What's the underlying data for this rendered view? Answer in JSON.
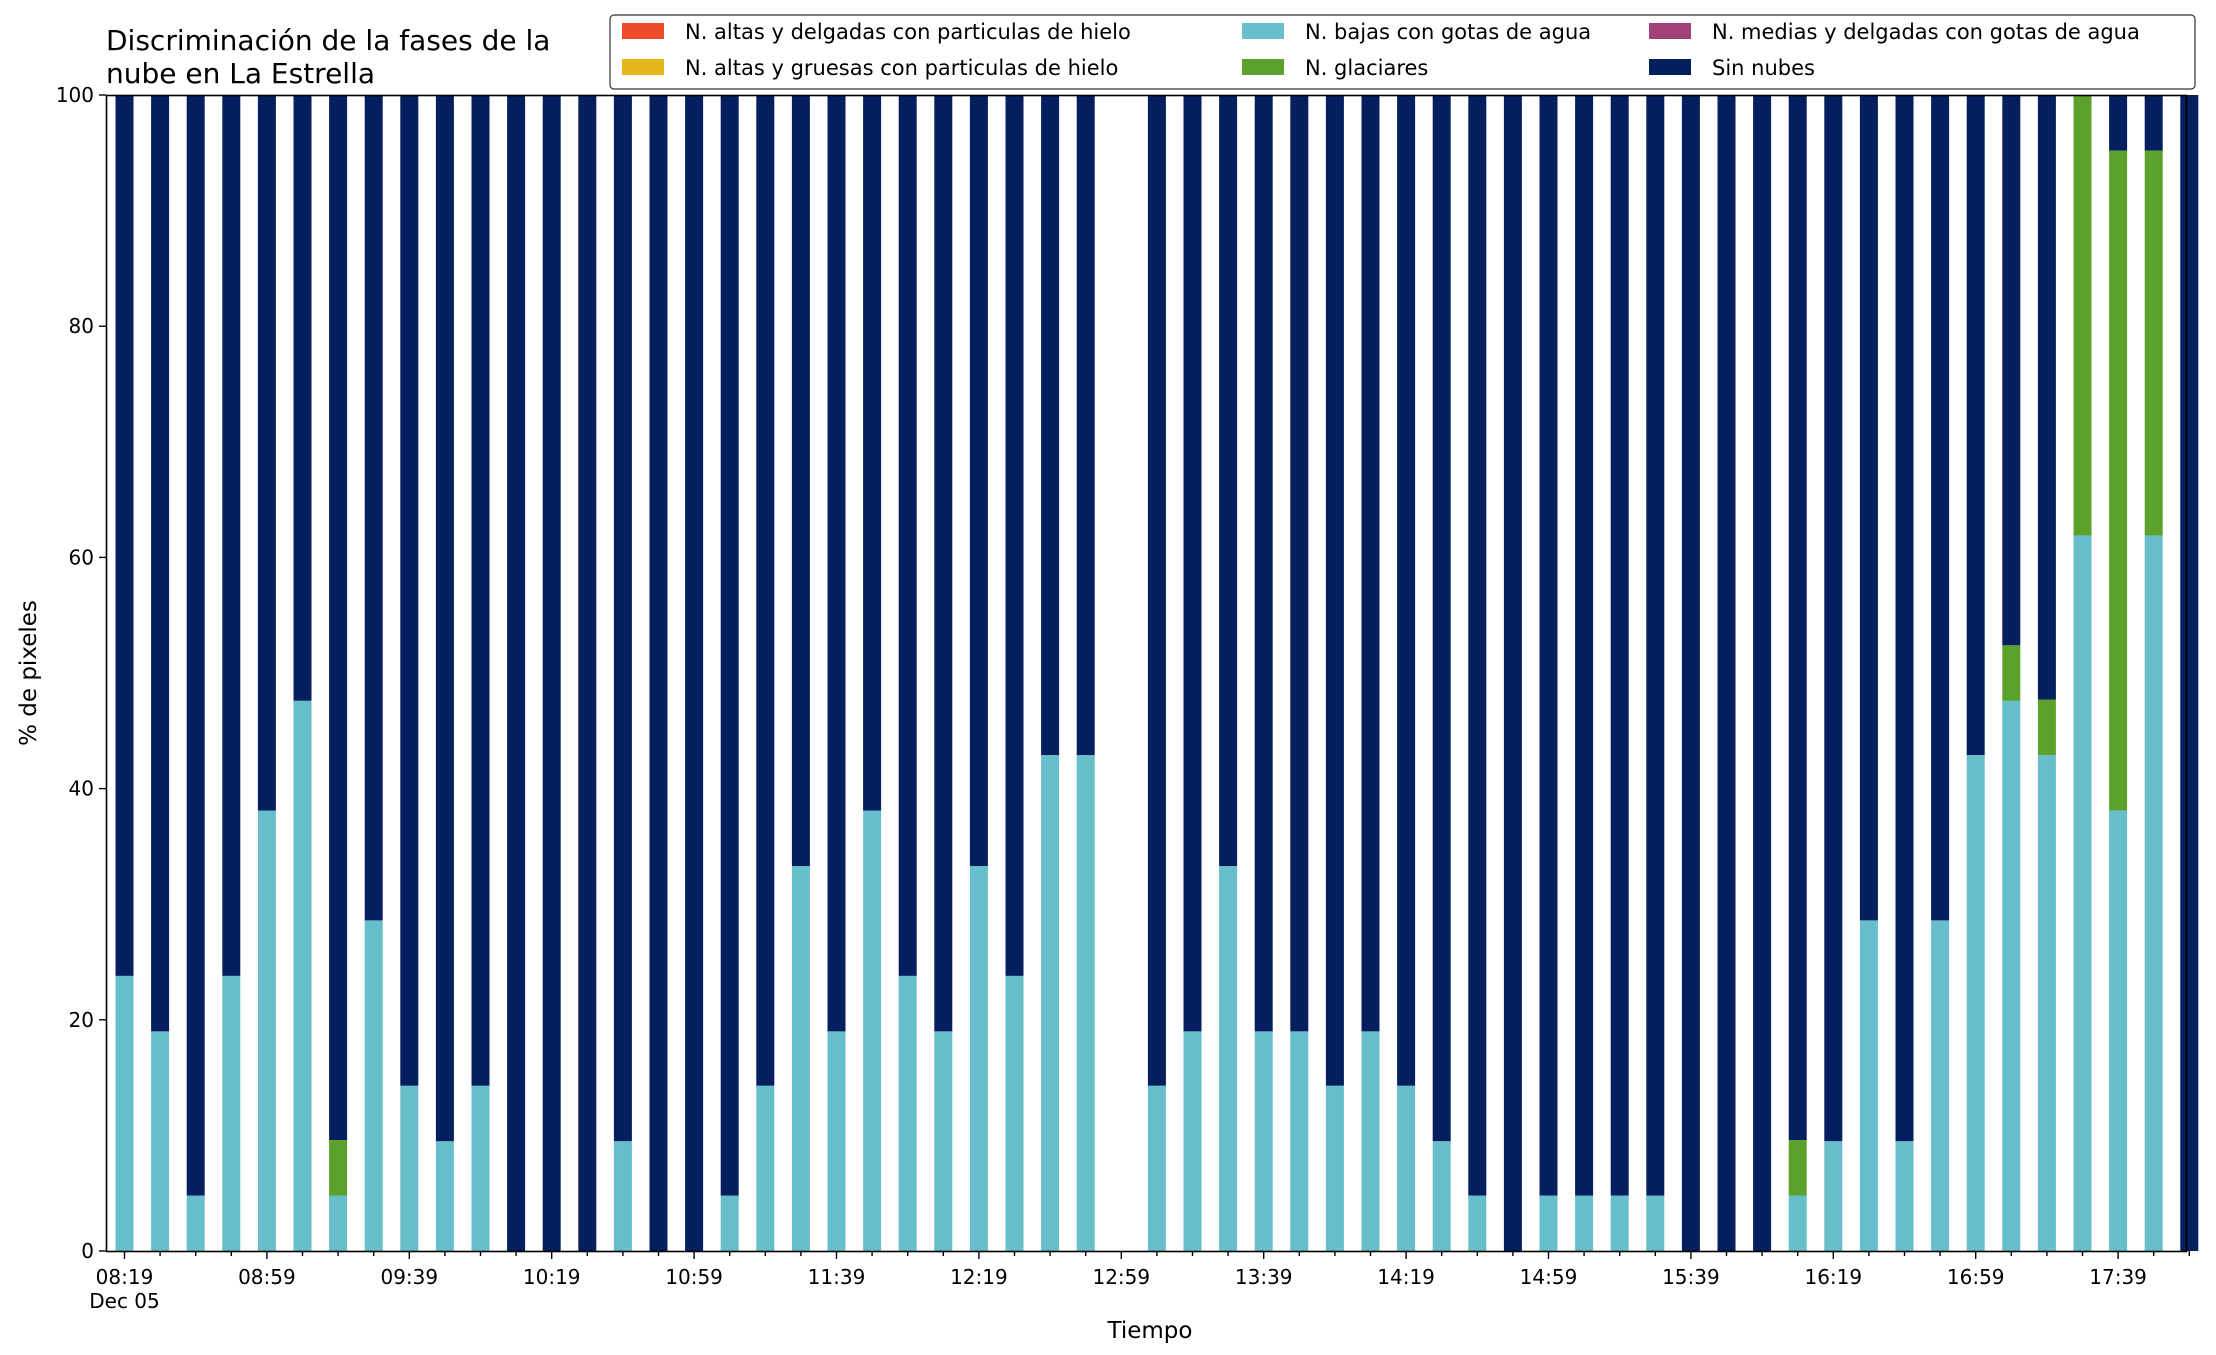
{
  "chart_data": {
    "type": "bar",
    "stacked": true,
    "title": [
      "Discriminación de la fases de la",
      "nube en La Estrella"
    ],
    "xlabel": "Tiempo",
    "ylabel": "% de pixeles",
    "ylim": [
      0,
      100
    ],
    "yticks": [
      0,
      20,
      40,
      60,
      80,
      100
    ],
    "x_start": "08:19",
    "x_step_minutes": 10,
    "x_tick_labels": [
      "08:19",
      "08:59",
      "09:39",
      "10:19",
      "10:59",
      "11:39",
      "12:19",
      "12:59",
      "13:39",
      "14:19",
      "14:59",
      "15:39",
      "16:19",
      "16:59",
      "17:39"
    ],
    "x_tick_sublabel": "Dec 05",
    "legend_position": "top-right",
    "grid": false,
    "series": [
      {
        "name": "N. altas y delgadas con particulas de hielo",
        "color": "#ee4a2c",
        "values": [
          0,
          0,
          0,
          0,
          0,
          0,
          0,
          0,
          0,
          0,
          0,
          0,
          0,
          0,
          0,
          0,
          0,
          0,
          0,
          0,
          0,
          0,
          0,
          0,
          0,
          0,
          0,
          0,
          null,
          0,
          0,
          0,
          0,
          0,
          0,
          0,
          0,
          0,
          0,
          0,
          0,
          0,
          0,
          0,
          0,
          0,
          0,
          0,
          0,
          0,
          0,
          0,
          0,
          0,
          0,
          0,
          0,
          0,
          0
        ]
      },
      {
        "name": "N. altas y gruesas con particulas de hielo",
        "color": "#e5b61a",
        "values": [
          0,
          0,
          0,
          0,
          0,
          0,
          0,
          0,
          0,
          0,
          0,
          0,
          0,
          0,
          0,
          0,
          0,
          0,
          0,
          0,
          0,
          0,
          0,
          0,
          0,
          0,
          0,
          0,
          null,
          0,
          0,
          0,
          0,
          0,
          0,
          0,
          0,
          0,
          0,
          0,
          0,
          0,
          0,
          0,
          0,
          0,
          0,
          0,
          0,
          0,
          0,
          0,
          0,
          0,
          0,
          0,
          0,
          0,
          0
        ]
      },
      {
        "name": "N. bajas con gotas de agua",
        "color": "#67bfcb",
        "values": [
          23.8,
          19.0,
          4.8,
          23.8,
          38.1,
          47.6,
          4.8,
          28.6,
          14.3,
          9.5,
          14.3,
          0,
          0,
          0,
          9.5,
          0,
          0,
          4.8,
          14.3,
          33.3,
          19.0,
          38.1,
          23.8,
          19.0,
          33.3,
          23.8,
          42.9,
          42.9,
          null,
          14.3,
          19.0,
          33.3,
          19.0,
          19.0,
          14.3,
          19.0,
          14.3,
          9.5,
          4.8,
          0,
          4.8,
          4.8,
          4.8,
          4.8,
          0,
          0,
          0,
          4.8,
          9.5,
          28.6,
          9.5,
          28.6,
          42.9,
          47.6,
          42.9,
          61.9,
          38.1,
          61.9,
          0
        ]
      },
      {
        "name": "N. glaciares",
        "color": "#5da12d",
        "values": [
          0,
          0,
          0,
          0,
          0,
          0,
          4.8,
          0,
          0,
          0,
          0,
          0,
          0,
          0,
          0,
          0,
          0,
          0,
          0,
          0,
          0,
          0,
          0,
          0,
          0,
          0,
          0,
          0,
          null,
          0,
          0,
          0,
          0,
          0,
          0,
          0,
          0,
          0,
          0,
          0,
          0,
          0,
          0,
          0,
          0,
          0,
          0,
          4.8,
          0,
          0,
          0,
          0,
          0,
          4.8,
          4.8,
          38.1,
          57.1,
          33.3,
          0
        ]
      },
      {
        "name": "N. medias y delgadas con gotas de agua",
        "color": "#a2407a",
        "values": [
          0,
          0,
          0,
          0,
          0,
          0,
          0,
          0,
          0,
          0,
          0,
          0,
          0,
          0,
          0,
          0,
          0,
          0,
          0,
          0,
          0,
          0,
          0,
          0,
          0,
          0,
          0,
          0,
          null,
          0,
          0,
          0,
          0,
          0,
          0,
          0,
          0,
          0,
          0,
          0,
          0,
          0,
          0,
          0,
          0,
          0,
          0,
          0,
          0,
          0,
          0,
          0,
          0,
          0,
          0,
          0,
          0,
          0,
          0
        ]
      },
      {
        "name": "Sin nubes",
        "color": "#041e5e",
        "values": [
          76.2,
          81.0,
          95.2,
          76.2,
          61.9,
          52.4,
          90.4,
          71.4,
          85.7,
          90.5,
          85.7,
          100,
          100,
          100,
          90.5,
          100,
          100,
          95.2,
          85.7,
          66.7,
          81.0,
          61.9,
          76.2,
          81.0,
          66.7,
          76.2,
          57.1,
          57.1,
          null,
          85.7,
          81.0,
          66.7,
          81.0,
          81.0,
          85.7,
          81.0,
          85.7,
          90.5,
          95.2,
          100,
          95.2,
          95.2,
          95.2,
          95.2,
          100,
          100,
          100,
          90.4,
          90.5,
          71.4,
          90.5,
          71.4,
          57.1,
          47.6,
          52.3,
          0,
          4.8,
          4.8,
          100
        ]
      }
    ]
  }
}
